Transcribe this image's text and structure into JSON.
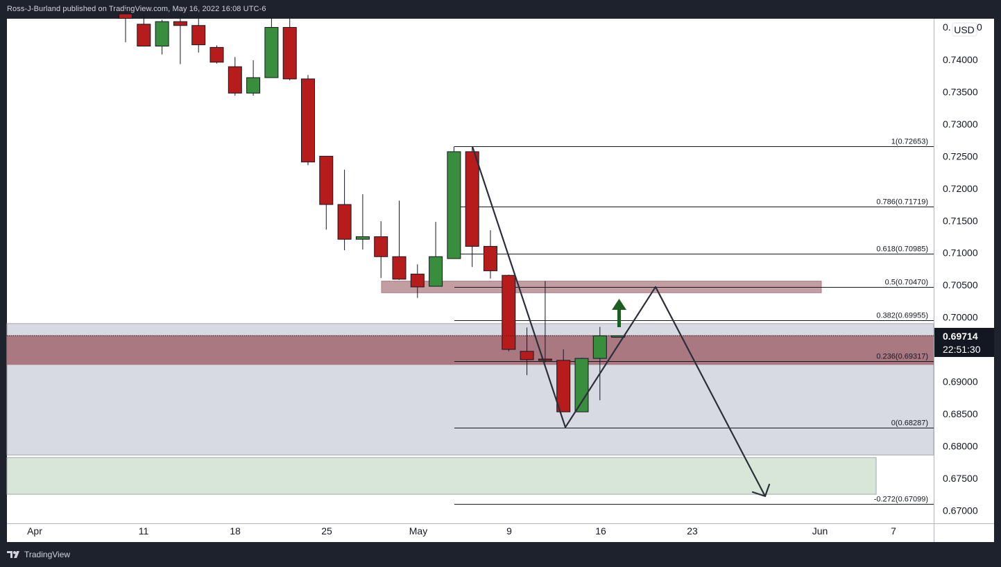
{
  "header": {
    "text": "Ross-J-Burland published on TradingView.com, May 16, 2022 16:08 UTC-6"
  },
  "footer": {
    "brand": "TradingView"
  },
  "price_axis": {
    "currency": "USD",
    "top_label": "0.",
    "top_label_suffix": "0",
    "last_price": "0.69714",
    "countdown": "22:51:30"
  },
  "colors": {
    "up": "#388e3c",
    "down": "#b71c1c",
    "zone_red": "#a8737a",
    "zone_gray": "#d1d4dc",
    "zone_green": "#d4e3d4",
    "arrow": "#1b5e20",
    "label_bg": "#131722"
  },
  "chart_data": {
    "type": "candlestick",
    "ylim": [
      0.6662,
      0.7471
    ],
    "y_ticks": [
      "0.74000",
      "0.73500",
      "0.73000",
      "0.72500",
      "0.72000",
      "0.71500",
      "0.71000",
      "0.70500",
      "0.70000",
      "0.69000",
      "0.68500",
      "0.68000",
      "0.67500",
      "0.67000"
    ],
    "x_ticks": [
      "Apr",
      "11",
      "18",
      "25",
      "May",
      "9",
      "16",
      "23",
      "Jun",
      "7"
    ],
    "candles": [
      {
        "o": 0.7471,
        "h": 0.7479,
        "l": 0.7427,
        "c": 0.7464
      },
      {
        "o": 0.7455,
        "h": 0.747,
        "l": 0.7424,
        "c": 0.7421
      },
      {
        "o": 0.7421,
        "h": 0.7462,
        "l": 0.7408,
        "c": 0.7459
      },
      {
        "o": 0.7459,
        "h": 0.747,
        "l": 0.7393,
        "c": 0.7453
      },
      {
        "o": 0.7453,
        "h": 0.7468,
        "l": 0.7411,
        "c": 0.7423
      },
      {
        "o": 0.7419,
        "h": 0.7422,
        "l": 0.7394,
        "c": 0.7396
      },
      {
        "o": 0.7389,
        "h": 0.7404,
        "l": 0.7344,
        "c": 0.7348
      },
      {
        "o": 0.7348,
        "h": 0.7399,
        "l": 0.7344,
        "c": 0.7372
      },
      {
        "o": 0.7372,
        "h": 0.7465,
        "l": 0.7372,
        "c": 0.745
      },
      {
        "o": 0.745,
        "h": 0.7465,
        "l": 0.7368,
        "c": 0.737
      },
      {
        "o": 0.737,
        "h": 0.7376,
        "l": 0.7236,
        "c": 0.7241
      },
      {
        "o": 0.725,
        "h": 0.725,
        "l": 0.7136,
        "c": 0.7175
      },
      {
        "o": 0.7175,
        "h": 0.7229,
        "l": 0.7104,
        "c": 0.7121
      },
      {
        "o": 0.7121,
        "h": 0.7191,
        "l": 0.7105,
        "c": 0.7125
      },
      {
        "o": 0.7125,
        "h": 0.7149,
        "l": 0.7061,
        "c": 0.7094
      },
      {
        "o": 0.7094,
        "h": 0.7181,
        "l": 0.7058,
        "c": 0.7059
      },
      {
        "o": 0.7067,
        "h": 0.7082,
        "l": 0.703,
        "c": 0.7047
      },
      {
        "o": 0.7048,
        "h": 0.7148,
        "l": 0.7048,
        "c": 0.7094
      },
      {
        "o": 0.7091,
        "h": 0.7265,
        "l": 0.7091,
        "c": 0.7257
      },
      {
        "o": 0.7257,
        "h": 0.7265,
        "l": 0.7078,
        "c": 0.711
      },
      {
        "o": 0.711,
        "h": 0.7135,
        "l": 0.706,
        "c": 0.7072
      },
      {
        "o": 0.7065,
        "h": 0.7066,
        "l": 0.6947,
        "c": 0.695
      },
      {
        "o": 0.6947,
        "h": 0.6984,
        "l": 0.691,
        "c": 0.6934
      },
      {
        "o": 0.6935,
        "h": 0.7056,
        "l": 0.693,
        "c": 0.6933
      },
      {
        "o": 0.6933,
        "h": 0.695,
        "l": 0.6855,
        "c": 0.6853
      },
      {
        "o": 0.6853,
        "h": 0.6937,
        "l": 0.6853,
        "c": 0.6936
      },
      {
        "o": 0.6936,
        "h": 0.6985,
        "l": 0.6871,
        "c": 0.6971
      },
      {
        "o": 0.6971,
        "h": 0.6971,
        "l": 0.6971,
        "c": 0.6971
      }
    ],
    "fib_levels": [
      {
        "ratio": "1",
        "value": 0.72653,
        "label": "1(0.72653)"
      },
      {
        "ratio": "0.786",
        "value": 0.71719,
        "label": "0.786(0.71719)"
      },
      {
        "ratio": "0.618",
        "value": 0.70985,
        "label": "0.618(0.70985)"
      },
      {
        "ratio": "0.5",
        "value": 0.7047,
        "label": "0.5(0.70470)"
      },
      {
        "ratio": "0.382",
        "value": 0.69955,
        "label": "0.382(0.69955)"
      },
      {
        "ratio": "0.236",
        "value": 0.69317,
        "label": "0.236(0.69317)"
      },
      {
        "ratio": "0",
        "value": 0.68287,
        "label": "0(0.68287)"
      },
      {
        "ratio": "-0.272",
        "value": 0.67099,
        "label": "-0.272(0.67099)"
      }
    ],
    "zones": [
      {
        "kind": "support-resistance",
        "color": "gray",
        "from": 0.6786,
        "to": 0.699
      },
      {
        "kind": "support-resistance",
        "color": "red",
        "from": 0.6926,
        "to": 0.6972
      },
      {
        "kind": "support-resistance",
        "color": "red",
        "from": 0.7038,
        "to": 0.7056
      },
      {
        "kind": "target",
        "color": "green",
        "from": 0.6725,
        "to": 0.6782
      }
    ],
    "projection_path": [
      0.7265,
      0.6829,
      0.7047,
      0.6722
    ],
    "last_price": 0.69714
  }
}
